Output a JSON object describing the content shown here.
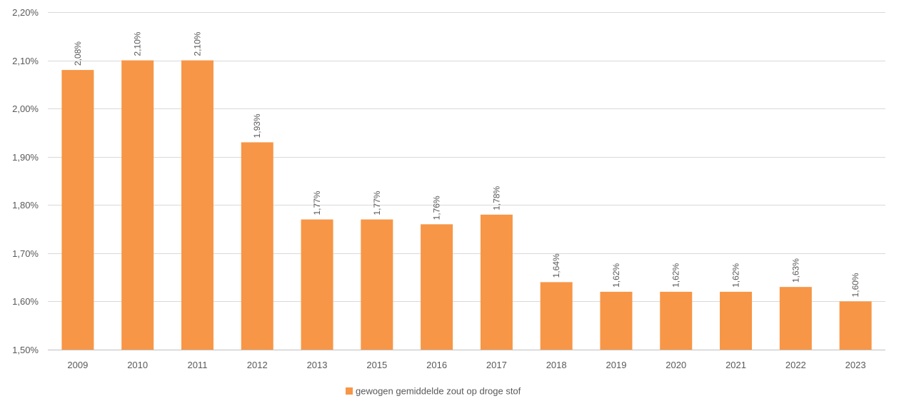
{
  "chart_data": {
    "type": "bar",
    "title": "",
    "xlabel": "",
    "ylabel": "",
    "categories": [
      "2009",
      "2010",
      "2011",
      "2012",
      "2013",
      "2015",
      "2016",
      "2017",
      "2018",
      "2019",
      "2020",
      "2021",
      "2022",
      "2023"
    ],
    "series": [
      {
        "name": "gewogen gemiddelde zout op droge stof",
        "values": [
          2.08,
          2.1,
          2.1,
          1.93,
          1.77,
          1.77,
          1.76,
          1.78,
          1.64,
          1.62,
          1.62,
          1.62,
          1.63,
          1.6
        ],
        "labels": [
          "2,08%",
          "2,10%",
          "2,10%",
          "1,93%",
          "1,77%",
          "1,77%",
          "1,76%",
          "1,78%",
          "1,64%",
          "1,62%",
          "1,62%",
          "1,62%",
          "1,63%",
          "1,60%"
        ],
        "color": "#F79646"
      }
    ],
    "ylim": [
      1.5,
      2.2
    ],
    "yticks": [
      1.5,
      1.6,
      1.7,
      1.8,
      1.9,
      2.0,
      2.1,
      2.2
    ],
    "ytick_labels": [
      "1,50%",
      "1,60%",
      "1,70%",
      "1,80%",
      "1,90%",
      "2,00%",
      "2,10%",
      "2,20%"
    ],
    "grid": true,
    "legend_position": "bottom",
    "data_label_orientation": "vertical"
  },
  "colors": {
    "bar": "#F79646",
    "grid": "#d9d9d9",
    "text": "#595959"
  }
}
